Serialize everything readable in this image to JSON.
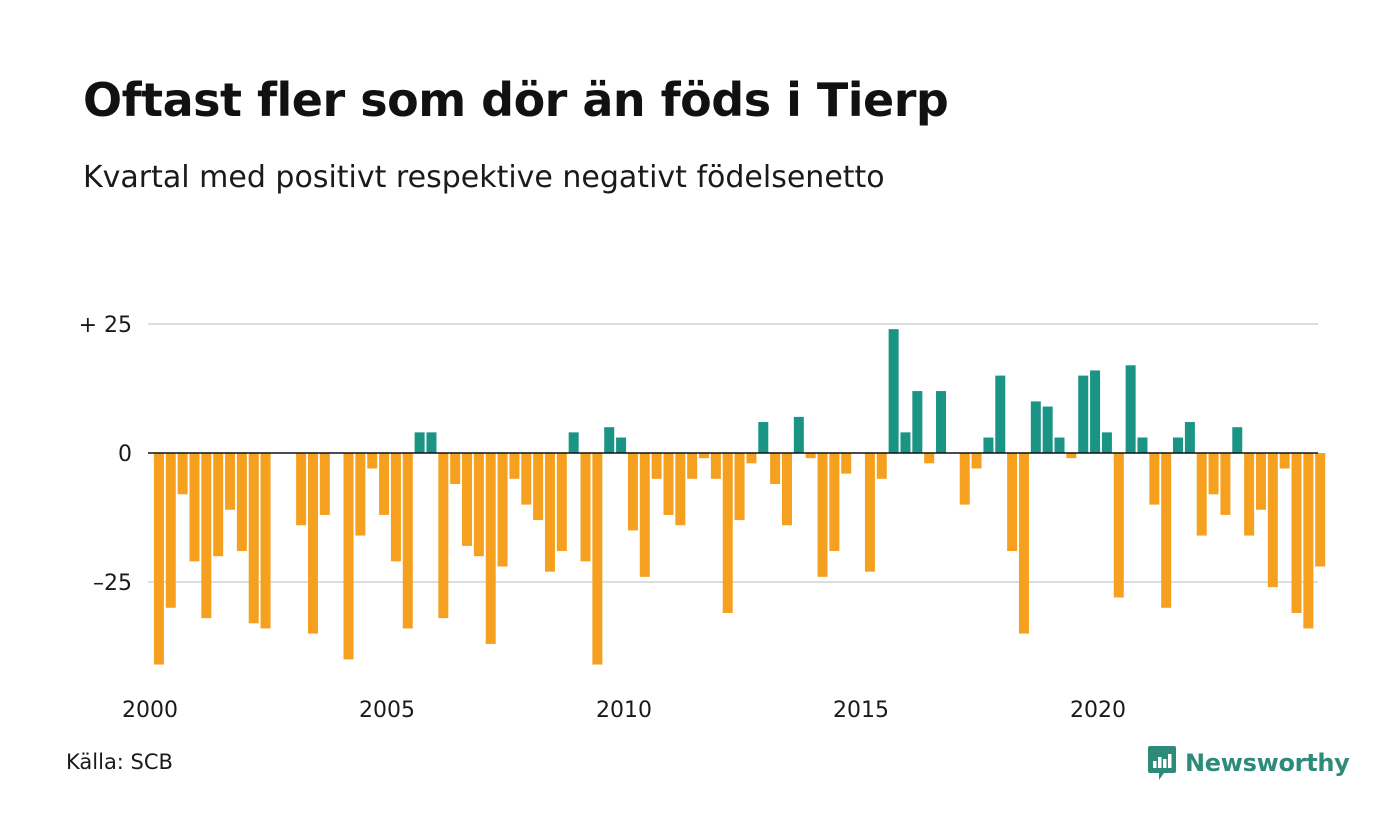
{
  "title": "Oftast fler som dör än föds i Tierp",
  "subtitle": "Kvartal med positivt respektive negativt födelsenetto",
  "source": "Källa: SCB",
  "logo": {
    "name": "Newsworthy",
    "icon": "newsworthy-chat-icon"
  },
  "colors": {
    "positive": "#1a9485",
    "negative": "#f5a11f",
    "grid": "#dddddd",
    "axis": "#111111"
  },
  "chart_data": {
    "type": "bar",
    "title": "Oftast fler som dör än föds i Tierp",
    "subtitle": "Kvartal med positivt respektive negativt födelsenetto",
    "xlabel": "",
    "ylabel": "",
    "ylim": [
      -45,
      27
    ],
    "xlim": [
      2000.0,
      2024.75
    ],
    "grid": true,
    "y_ticks": [
      {
        "value": 25,
        "label": "+ 25"
      },
      {
        "value": 0,
        "label": "0"
      },
      {
        "value": -25,
        "label": "–25"
      }
    ],
    "x_ticks": [
      {
        "value": 2000,
        "label": "2000"
      },
      {
        "value": 2005,
        "label": "2005"
      },
      {
        "value": 2010,
        "label": "2010"
      },
      {
        "value": 2015,
        "label": "2015"
      },
      {
        "value": 2020,
        "label": "2020"
      }
    ],
    "start_year": 2000,
    "start_quarter": 1,
    "values": [
      -41,
      -30,
      -8,
      -21,
      -32,
      -20,
      -11,
      -19,
      -33,
      -34,
      0,
      0,
      -14,
      -35,
      -12,
      0,
      -40,
      -16,
      -3,
      -12,
      -21,
      -34,
      4,
      4,
      -32,
      -6,
      -18,
      -20,
      -37,
      -22,
      -5,
      -10,
      -13,
      -23,
      -19,
      4,
      -21,
      -41,
      5,
      3,
      -15,
      -24,
      -5,
      -12,
      -14,
      -5,
      -1,
      -5,
      -31,
      -13,
      -2,
      6,
      -6,
      -14,
      7,
      -1,
      -24,
      -19,
      -4,
      0,
      -23,
      -5,
      24,
      4,
      12,
      -2,
      12,
      0,
      -10,
      -3,
      3,
      15,
      -19,
      -35,
      10,
      9,
      3,
      -1,
      15,
      16,
      4,
      -28,
      17,
      3,
      -10,
      -30,
      3,
      6,
      -16,
      -8,
      -12,
      5,
      -16,
      -11,
      -26,
      -3,
      -31,
      -34,
      -22
    ]
  }
}
